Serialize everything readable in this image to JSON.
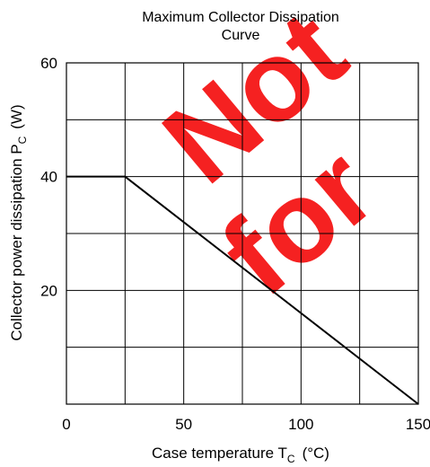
{
  "chart_data": {
    "type": "line",
    "title_line1": "Maximum Collector Dissipation",
    "title_line2": "Curve",
    "xlabel": "Case temperature  T",
    "xlabel_sub": "C",
    "xlabel_unit": "(°C)",
    "ylabel": "Collector power dissipation  P",
    "ylabel_sub": "C",
    "ylabel_unit": "(W)",
    "xlim": [
      0,
      150
    ],
    "ylim": [
      0,
      60
    ],
    "x_ticks": [
      0,
      50,
      100,
      150
    ],
    "y_ticks": [
      20,
      40,
      60
    ],
    "x_grid_step": 25,
    "y_grid_step": 10,
    "grid": true,
    "series": [
      {
        "x": [
          0,
          25,
          150
        ],
        "y": [
          40,
          40,
          0
        ]
      }
    ],
    "watermark": {
      "line1": "Not",
      "line2": "for",
      "color": "#f40a0a"
    }
  }
}
